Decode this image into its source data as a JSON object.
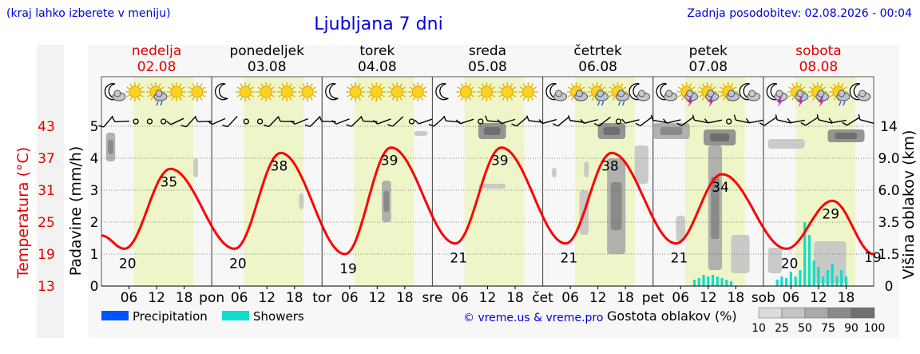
{
  "header": {
    "hint": "(kraj lahko izberete v meniju)",
    "title": "Ljubljana 7 dni",
    "updated": "Zadnja posodobitev: 02.08.2026 - 00:04"
  },
  "days": [
    {
      "name": "nedelja",
      "date": "02.08",
      "weekend": true,
      "abbr": "pon"
    },
    {
      "name": "ponedeljek",
      "date": "03.08",
      "weekend": false,
      "abbr": "tor"
    },
    {
      "name": "torek",
      "date": "04.08",
      "weekend": false,
      "abbr": "sre"
    },
    {
      "name": "sreda",
      "date": "05.08",
      "weekend": false,
      "abbr": "čet"
    },
    {
      "name": "četrtek",
      "date": "06.08",
      "weekend": false,
      "abbr": "pet"
    },
    {
      "name": "petek",
      "date": "07.08",
      "weekend": false,
      "abbr": "sob"
    },
    {
      "name": "sobota",
      "date": "08.08",
      "weekend": true,
      "abbr": ""
    }
  ],
  "hour_ticks": [
    "06",
    "12",
    "18"
  ],
  "weather_icons": [
    [
      "moon-cloud",
      "sun",
      "sun-cloud-rain",
      "sun",
      "sun"
    ],
    [
      "moon",
      "sun",
      "sun",
      "sun",
      "sun"
    ],
    [
      "moon",
      "sun",
      "sun",
      "sun",
      "sun"
    ],
    [
      "moon",
      "sun",
      "sun",
      "sun",
      "sun"
    ],
    [
      "moon-cloud",
      "sun-cloud",
      "sun-cloud-rain",
      "sun-cloud-rain",
      "moon-cloud"
    ],
    [
      "moon-cloud",
      "sun-storm",
      "sun-storm",
      "sun-cloud",
      "moon-cloud"
    ],
    [
      "moon-storm",
      "sun-storm",
      "sun-storm",
      "sun-cloud-rain",
      "moon-cloud"
    ]
  ],
  "chart_data": {
    "type": "line",
    "title": "Ljubljana 7 dni",
    "y_left_outer": {
      "label": "Temperatura (°C)",
      "ticks": [
        13,
        19,
        25,
        31,
        37,
        43
      ],
      "color": "#e00000"
    },
    "y_left_inner": {
      "label": "Padavine (mm/h)",
      "ticks": [
        0,
        1,
        2,
        3,
        4,
        5
      ]
    },
    "y_right": {
      "label": "Višina oblakov (km)",
      "ticks": [
        "0",
        "1.5",
        "3.5",
        "6.0",
        "9.0",
        "14"
      ]
    },
    "temperature_extremes": [
      {
        "day": "nedelja",
        "min": 20,
        "max": 35
      },
      {
        "day": "ponedeljek",
        "min": 20,
        "max": 38
      },
      {
        "day": "torek",
        "min": 19,
        "max": 39
      },
      {
        "day": "sreda",
        "min": 21,
        "max": 39
      },
      {
        "day": "četrtek",
        "min": 21,
        "max": 38
      },
      {
        "day": "petek",
        "min": 21,
        "max": 34
      },
      {
        "day": "sobota",
        "min": 20,
        "max": 29,
        "end": 19
      }
    ],
    "showers": [
      {
        "day": "petek",
        "hour": 9,
        "value": 0.2
      },
      {
        "day": "petek",
        "hour": 10,
        "value": 0.25
      },
      {
        "day": "petek",
        "hour": 11,
        "value": 0.35
      },
      {
        "day": "petek",
        "hour": 12,
        "value": 0.3
      },
      {
        "day": "petek",
        "hour": 13,
        "value": 0.35
      },
      {
        "day": "petek",
        "hour": 14,
        "value": 0.3
      },
      {
        "day": "petek",
        "hour": 15,
        "value": 0.25
      },
      {
        "day": "petek",
        "hour": 16,
        "value": 0.2
      },
      {
        "day": "petek",
        "hour": 17,
        "value": 0.15
      },
      {
        "day": "sobota",
        "hour": 3,
        "value": 0.2
      },
      {
        "day": "sobota",
        "hour": 4,
        "value": 0.3
      },
      {
        "day": "sobota",
        "hour": 5,
        "value": 0.25
      },
      {
        "day": "sobota",
        "hour": 6,
        "value": 0.45
      },
      {
        "day": "sobota",
        "hour": 7,
        "value": 0.3
      },
      {
        "day": "sobota",
        "hour": 8,
        "value": 0.5
      },
      {
        "day": "sobota",
        "hour": 9,
        "value": 2.0
      },
      {
        "day": "sobota",
        "hour": 10,
        "value": 1.6
      },
      {
        "day": "sobota",
        "hour": 11,
        "value": 0.8
      },
      {
        "day": "sobota",
        "hour": 12,
        "value": 0.6
      },
      {
        "day": "sobota",
        "hour": 13,
        "value": 0.3
      },
      {
        "day": "sobota",
        "hour": 14,
        "value": 0.5
      },
      {
        "day": "sobota",
        "hour": 15,
        "value": 0.7
      },
      {
        "day": "sobota",
        "hour": 16,
        "value": 0.3
      },
      {
        "day": "sobota",
        "hour": 17,
        "value": 0.5
      },
      {
        "day": "sobota",
        "hour": 18,
        "value": 0.3
      }
    ],
    "cloud_patches": [
      {
        "day": 0,
        "hour": 1,
        "hours": 2,
        "z": 3.9,
        "dz": 0.9,
        "density": 50
      },
      {
        "day": 0,
        "hour": 20,
        "hours": 1,
        "z": 3.4,
        "dz": 0.6,
        "density": 25
      },
      {
        "day": 1,
        "hour": 19,
        "hours": 1,
        "z": 2.4,
        "dz": 0.5,
        "density": 25
      },
      {
        "day": 2,
        "hour": 13,
        "hours": 2,
        "z": 2.0,
        "dz": 1.3,
        "density": 50
      },
      {
        "day": 3,
        "hour": 10,
        "hours": 6,
        "z": 4.6,
        "dz": 0.5,
        "density": 75
      },
      {
        "day": 3,
        "hour": 10,
        "hours": 6,
        "z": 3.05,
        "dz": 0.15,
        "density": 25
      },
      {
        "day": 2,
        "hour": 20,
        "hours": 3,
        "z": 4.7,
        "dz": 0.15,
        "density": 25
      },
      {
        "day": 4,
        "hour": 2,
        "hours": 1,
        "z": 3.4,
        "dz": 0.3,
        "density": 25
      },
      {
        "day": 4,
        "hour": 9,
        "hours": 1,
        "z": 3.4,
        "dz": 0.5,
        "density": 25
      },
      {
        "day": 4,
        "hour": 12,
        "hours": 6,
        "z": 4.6,
        "dz": 0.5,
        "density": 75
      },
      {
        "day": 4,
        "hour": 14,
        "hours": 4,
        "z": 1.0,
        "dz": 3.0,
        "density": 50
      },
      {
        "day": 4,
        "hour": 8,
        "hours": 2,
        "z": 1.6,
        "dz": 1.4,
        "density": 25
      },
      {
        "day": 4,
        "hour": 20,
        "hours": 3,
        "z": 3.2,
        "dz": 1.2,
        "density": 25
      },
      {
        "day": 5,
        "hour": 0,
        "hours": 8,
        "z": 4.6,
        "dz": 0.5,
        "density": 50
      },
      {
        "day": 5,
        "hour": 11,
        "hours": 7,
        "z": 4.4,
        "dz": 0.5,
        "density": 75
      },
      {
        "day": 5,
        "hour": 12,
        "hours": 3,
        "z": 0.5,
        "dz": 3.9,
        "density": 50
      },
      {
        "day": 5,
        "hour": 5,
        "hours": 2,
        "z": 1.4,
        "dz": 0.8,
        "density": 25
      },
      {
        "day": 5,
        "hour": 17,
        "hours": 4,
        "z": 0.4,
        "dz": 1.2,
        "density": 25
      },
      {
        "day": 6,
        "hour": 1,
        "hours": 3,
        "z": 0.4,
        "dz": 0.8,
        "density": 25
      },
      {
        "day": 6,
        "hour": 1,
        "hours": 8,
        "z": 4.3,
        "dz": 0.3,
        "density": 25
      },
      {
        "day": 6,
        "hour": 14,
        "hours": 8,
        "z": 4.5,
        "dz": 0.4,
        "density": 75
      },
      {
        "day": 6,
        "hour": 11,
        "hours": 7,
        "z": 0.1,
        "dz": 1.3,
        "density": 25
      }
    ]
  },
  "legend": {
    "precipitation": "Precipitation",
    "showers": "Showers",
    "precipitation_color": "#0055ff",
    "showers_color": "#11ddcc",
    "credits": "© vreme.us & vreme.pro",
    "density_title": "Gostota oblakov (%)",
    "density_levels": [
      "10",
      "25",
      "50",
      "75",
      "90",
      "100"
    ]
  },
  "colors": {
    "temperature": "#ff0000",
    "weekend": "#dd0000",
    "daylight": "#eef5c8",
    "night": "#f7f7f7",
    "link": "#0000dd"
  }
}
